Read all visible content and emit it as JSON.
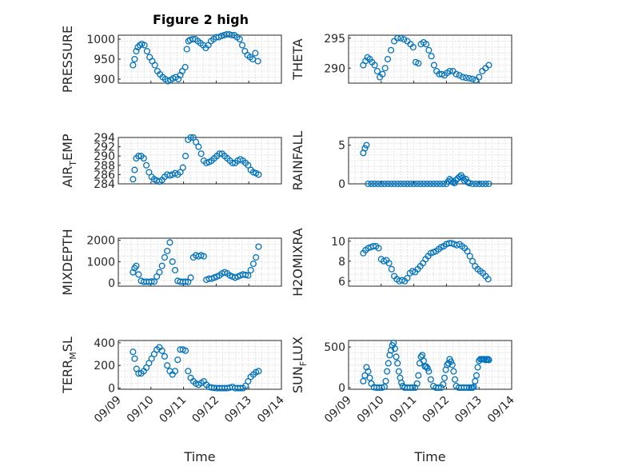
{
  "figure": {
    "title": "Figure 2 high"
  },
  "chart_data": [
    {
      "id": "pressure",
      "type": "scatter",
      "title": "Figure 2 high",
      "ylabel": "PRESSURE",
      "ylim": [
        890,
        1010
      ],
      "yticks": [
        900,
        950,
        1000
      ],
      "xlim": [
        0,
        5
      ],
      "xticklabels": [
        "09/09",
        "09/10",
        "09/11",
        "09/12",
        "09/13",
        "09/14"
      ],
      "xlabel": "",
      "x": [
        0.45,
        0.5,
        0.55,
        0.6,
        0.66,
        0.72,
        0.8,
        0.88,
        0.96,
        1.04,
        1.12,
        1.2,
        1.28,
        1.36,
        1.44,
        1.52,
        1.6,
        1.68,
        1.76,
        1.84,
        1.9,
        1.96,
        2.05,
        2.1,
        2.15,
        2.2,
        2.28,
        2.36,
        2.44,
        2.52,
        2.6,
        2.68,
        2.76,
        2.84,
        2.92,
        3.0,
        3.08,
        3.16,
        3.24,
        3.32,
        3.4,
        3.48,
        3.56,
        3.64,
        3.72,
        3.8,
        3.88,
        3.96,
        4.04,
        4.12,
        4.2,
        4.28
      ],
      "y": [
        935,
        950,
        970,
        980,
        985,
        988,
        985,
        970,
        955,
        945,
        935,
        920,
        912,
        905,
        900,
        895,
        898,
        902,
        905,
        900,
        910,
        920,
        930,
        975,
        995,
        998,
        1000,
        1000,
        995,
        990,
        985,
        978,
        985,
        995,
        1000,
        1005,
        1005,
        1008,
        1010,
        1012,
        1012,
        1010,
        1010,
        1005,
        1000,
        985,
        970,
        960,
        955,
        950,
        965,
        945
      ]
    },
    {
      "id": "theta",
      "type": "scatter",
      "ylabel": "THETA",
      "ylim": [
        287.5,
        295.5
      ],
      "yticks": [
        290,
        295
      ],
      "xlim": [
        0,
        5
      ],
      "xticklabels": [
        "09/09",
        "09/10",
        "09/11",
        "09/12",
        "09/13",
        "09/14"
      ],
      "xlabel": "",
      "x": [
        0.45,
        0.52,
        0.58,
        0.65,
        0.72,
        0.8,
        0.88,
        0.96,
        1.04,
        1.12,
        1.2,
        1.3,
        1.4,
        1.5,
        1.6,
        1.7,
        1.8,
        1.9,
        1.98,
        2.06,
        2.14,
        2.22,
        2.3,
        2.38,
        2.46,
        2.54,
        2.62,
        2.7,
        2.78,
        2.86,
        2.94,
        3.02,
        3.1,
        3.2,
        3.3,
        3.4,
        3.5,
        3.6,
        3.7,
        3.8,
        3.9,
        4.0,
        4.1,
        4.2,
        4.3
      ],
      "y": [
        290.5,
        291.2,
        291.8,
        291.5,
        291.0,
        290.5,
        289.5,
        288.5,
        289.0,
        290.0,
        291.5,
        293.0,
        294.5,
        295.0,
        295.0,
        294.8,
        294.5,
        294.0,
        293.5,
        291.0,
        290.8,
        294.0,
        294.3,
        294.0,
        293.0,
        292.0,
        290.5,
        289.5,
        289.0,
        289.0,
        288.8,
        289.2,
        289.5,
        289.5,
        289.0,
        288.8,
        288.5,
        288.4,
        288.3,
        288.2,
        288.0,
        288.5,
        289.5,
        290.0,
        290.5
      ]
    },
    {
      "id": "air_temp",
      "type": "scatter",
      "ylabel_main": "AIR",
      "ylabel_sub": "T",
      "ylabel_rest": "EMP",
      "ylim": [
        284,
        294
      ],
      "yticks": [
        284,
        286,
        288,
        290,
        292,
        294
      ],
      "xlim": [
        0,
        5
      ],
      "xticklabels": [
        "09/09",
        "09/10",
        "09/11",
        "09/12",
        "09/13",
        "09/14"
      ],
      "xlabel": "",
      "x": [
        0.45,
        0.5,
        0.55,
        0.62,
        0.7,
        0.78,
        0.86,
        0.94,
        1.02,
        1.1,
        1.18,
        1.26,
        1.34,
        1.42,
        1.5,
        1.58,
        1.66,
        1.74,
        1.82,
        1.9,
        1.98,
        2.06,
        2.14,
        2.22,
        2.3,
        2.38,
        2.46,
        2.54,
        2.62,
        2.7,
        2.78,
        2.86,
        2.94,
        3.02,
        3.1,
        3.18,
        3.26,
        3.34,
        3.42,
        3.5,
        3.58,
        3.66,
        3.74,
        3.82,
        3.9,
        3.98,
        4.06,
        4.14,
        4.22,
        4.3
      ],
      "y": [
        285.0,
        287.0,
        289.5,
        290.0,
        290.0,
        289.5,
        288.0,
        286.5,
        285.5,
        285.0,
        284.7,
        284.5,
        284.8,
        285.5,
        286.0,
        285.8,
        286.0,
        286.3,
        286.0,
        286.5,
        287.5,
        290.0,
        293.5,
        294.0,
        294.0,
        293.0,
        292.0,
        290.5,
        289.0,
        288.5,
        288.7,
        289.0,
        289.5,
        290.0,
        290.5,
        290.5,
        290.0,
        289.5,
        289.0,
        288.5,
        288.5,
        289.0,
        289.3,
        289.0,
        288.5,
        288.0,
        287.0,
        286.5,
        286.3,
        286.0
      ]
    },
    {
      "id": "rainfall",
      "type": "scatter",
      "ylabel": "RAINFALL",
      "ylim": [
        0,
        6
      ],
      "yticks": [
        0,
        5
      ],
      "xlim": [
        0,
        5
      ],
      "xticklabels": [
        "09/09",
        "09/10",
        "09/11",
        "09/12",
        "09/13",
        "09/14"
      ],
      "xlabel": "",
      "x": [
        0.45,
        0.5,
        0.55,
        0.6,
        0.7,
        0.8,
        0.9,
        1.0,
        1.1,
        1.2,
        1.3,
        1.4,
        1.5,
        1.6,
        1.7,
        1.8,
        1.9,
        2.0,
        2.1,
        2.2,
        2.3,
        2.4,
        2.5,
        2.6,
        2.7,
        2.8,
        2.9,
        3.0,
        3.05,
        3.1,
        3.15,
        3.2,
        3.25,
        3.3,
        3.35,
        3.4,
        3.45,
        3.5,
        3.55,
        3.6,
        3.65,
        3.7,
        3.8,
        3.9,
        4.0,
        4.1,
        4.2,
        4.3
      ],
      "y": [
        4.0,
        4.6,
        5.0,
        0,
        0,
        0,
        0,
        0,
        0,
        0,
        0,
        0,
        0,
        0,
        0,
        0,
        0,
        0,
        0,
        0,
        0,
        0,
        0,
        0,
        0,
        0,
        0,
        0,
        0.3,
        0.6,
        0.4,
        0.2,
        0.1,
        0.5,
        0.7,
        0.9,
        1.1,
        0.8,
        0.4,
        0.6,
        0.2,
        0.1,
        0,
        0,
        0,
        0,
        0,
        0
      ]
    },
    {
      "id": "mixdepth",
      "type": "scatter",
      "ylabel": "MIXDEPTH",
      "ylim": [
        -150,
        2100
      ],
      "yticks": [
        0,
        1000,
        2000
      ],
      "xlim": [
        0,
        5
      ],
      "xticklabels": [
        "09/09",
        "09/10",
        "09/11",
        "09/12",
        "09/13",
        "09/14"
      ],
      "xlabel": "",
      "x": [
        0.45,
        0.5,
        0.55,
        0.62,
        0.7,
        0.78,
        0.86,
        0.94,
        1.02,
        1.1,
        1.18,
        1.26,
        1.34,
        1.42,
        1.5,
        1.58,
        1.66,
        1.74,
        1.82,
        1.9,
        1.98,
        2.06,
        2.14,
        2.22,
        2.3,
        2.38,
        2.46,
        2.54,
        2.62,
        2.7,
        2.78,
        2.86,
        2.94,
        3.02,
        3.1,
        3.18,
        3.26,
        3.34,
        3.42,
        3.5,
        3.58,
        3.66,
        3.74,
        3.82,
        3.9,
        3.98,
        4.06,
        4.14,
        4.22,
        4.3
      ],
      "y": [
        500,
        700,
        800,
        400,
        100,
        50,
        60,
        50,
        70,
        60,
        300,
        500,
        800,
        1200,
        1500,
        1900,
        1000,
        600,
        100,
        60,
        50,
        60,
        50,
        250,
        1200,
        1300,
        1250,
        1300,
        1250,
        150,
        200,
        200,
        250,
        300,
        350,
        450,
        500,
        450,
        350,
        300,
        250,
        300,
        350,
        400,
        380,
        350,
        600,
        900,
        1200,
        1700
      ]
    },
    {
      "id": "h2omixra",
      "type": "scatter",
      "ylabel": "H2OMIXRA",
      "ylim": [
        5.5,
        10.3
      ],
      "yticks": [
        6,
        8,
        10
      ],
      "xlim": [
        0,
        5
      ],
      "xticklabels": [
        "09/09",
        "09/10",
        "09/11",
        "09/12",
        "09/13",
        "09/14"
      ],
      "xlabel": "",
      "x": [
        0.45,
        0.52,
        0.6,
        0.68,
        0.76,
        0.84,
        0.92,
        1.0,
        1.08,
        1.16,
        1.24,
        1.32,
        1.4,
        1.48,
        1.56,
        1.64,
        1.72,
        1.8,
        1.88,
        1.96,
        2.04,
        2.12,
        2.2,
        2.28,
        2.36,
        2.44,
        2.52,
        2.6,
        2.68,
        2.76,
        2.84,
        2.92,
        3.0,
        3.08,
        3.16,
        3.24,
        3.32,
        3.4,
        3.48,
        3.56,
        3.64,
        3.72,
        3.8,
        3.88,
        3.96,
        4.04,
        4.12,
        4.2,
        4.28
      ],
      "y": [
        8.8,
        9.1,
        9.3,
        9.4,
        9.5,
        9.5,
        9.3,
        8.2,
        8.0,
        8.1,
        7.8,
        7.2,
        6.5,
        6.2,
        6.0,
        6.1,
        6.0,
        6.3,
        6.8,
        7.0,
        6.9,
        7.2,
        7.5,
        7.8,
        8.2,
        8.5,
        8.8,
        8.9,
        9.0,
        9.2,
        9.4,
        9.5,
        9.7,
        9.8,
        9.8,
        9.7,
        9.6,
        9.7,
        9.5,
        9.3,
        9.0,
        8.5,
        8.0,
        7.5,
        7.2,
        7.0,
        6.8,
        6.5,
        6.2
      ]
    },
    {
      "id": "terr_msl",
      "type": "scatter",
      "ylabel_main": "TERR",
      "ylabel_sub": "M",
      "ylabel_rest": "SL",
      "ylim": [
        -10,
        420
      ],
      "yticks": [
        0,
        200,
        400
      ],
      "xlim": [
        0,
        5
      ],
      "xticklabels": [
        "09/09",
        "09/10",
        "09/11",
        "09/12",
        "09/13",
        "09/14"
      ],
      "xlabel": "Time",
      "x": [
        0.45,
        0.5,
        0.56,
        0.62,
        0.7,
        0.78,
        0.86,
        0.94,
        1.02,
        1.1,
        1.18,
        1.26,
        1.34,
        1.42,
        1.5,
        1.58,
        1.66,
        1.74,
        1.82,
        1.9,
        1.98,
        2.06,
        2.14,
        2.22,
        2.3,
        2.38,
        2.46,
        2.54,
        2.62,
        2.7,
        2.78,
        2.86,
        2.94,
        3.02,
        3.1,
        3.18,
        3.26,
        3.34,
        3.42,
        3.5,
        3.58,
        3.66,
        3.74,
        3.82,
        3.9,
        3.98,
        4.06,
        4.14,
        4.22,
        4.3
      ],
      "y": [
        320,
        260,
        170,
        130,
        130,
        150,
        180,
        220,
        260,
        300,
        340,
        360,
        330,
        280,
        200,
        150,
        120,
        150,
        250,
        340,
        340,
        330,
        150,
        90,
        60,
        40,
        30,
        45,
        60,
        30,
        10,
        5,
        2,
        0,
        0,
        0,
        0,
        0,
        5,
        10,
        0,
        0,
        0,
        0,
        20,
        60,
        100,
        120,
        140,
        150
      ]
    },
    {
      "id": "sun_flux",
      "type": "scatter",
      "ylabel_main": "SUN",
      "ylabel_sub": "F",
      "ylabel_rest": "LUX",
      "ylim": [
        -20,
        580
      ],
      "yticks": [
        0,
        500
      ],
      "xlim": [
        0,
        5
      ],
      "xticklabels": [
        "09/09",
        "09/10",
        "09/11",
        "09/12",
        "09/13",
        "09/14"
      ],
      "xlabel": "Time",
      "x": [
        0.45,
        0.5,
        0.55,
        0.6,
        0.65,
        0.7,
        0.78,
        0.86,
        0.94,
        1.02,
        1.1,
        1.14,
        1.18,
        1.22,
        1.26,
        1.3,
        1.34,
        1.38,
        1.42,
        1.46,
        1.5,
        1.54,
        1.58,
        1.62,
        1.66,
        1.72,
        1.8,
        1.88,
        1.96,
        2.04,
        2.1,
        2.14,
        2.18,
        2.22,
        2.26,
        2.3,
        2.34,
        2.38,
        2.42,
        2.46,
        2.52,
        2.6,
        2.68,
        2.76,
        2.84,
        2.9,
        2.94,
        2.98,
        3.02,
        3.06,
        3.1,
        3.14,
        3.18,
        3.22,
        3.26,
        3.3,
        3.38,
        3.46,
        3.54,
        3.62,
        3.7,
        3.76,
        3.8,
        3.84,
        3.88,
        3.92,
        3.96,
        4.0,
        4.04,
        4.08,
        4.12,
        4.16,
        4.2,
        4.24,
        4.28,
        4.3
      ],
      "y": [
        80,
        150,
        250,
        200,
        120,
        50,
        5,
        0,
        0,
        0,
        10,
        80,
        200,
        300,
        400,
        460,
        520,
        550,
        480,
        380,
        300,
        200,
        120,
        60,
        20,
        0,
        0,
        0,
        0,
        0,
        50,
        150,
        300,
        380,
        400,
        330,
        260,
        260,
        240,
        200,
        100,
        20,
        0,
        0,
        0,
        40,
        120,
        220,
        280,
        300,
        350,
        320,
        280,
        200,
        100,
        20,
        0,
        0,
        0,
        0,
        0,
        0,
        0,
        10,
        80,
        150,
        250,
        330,
        350,
        350,
        350,
        350,
        340,
        350,
        350,
        340
      ]
    }
  ]
}
